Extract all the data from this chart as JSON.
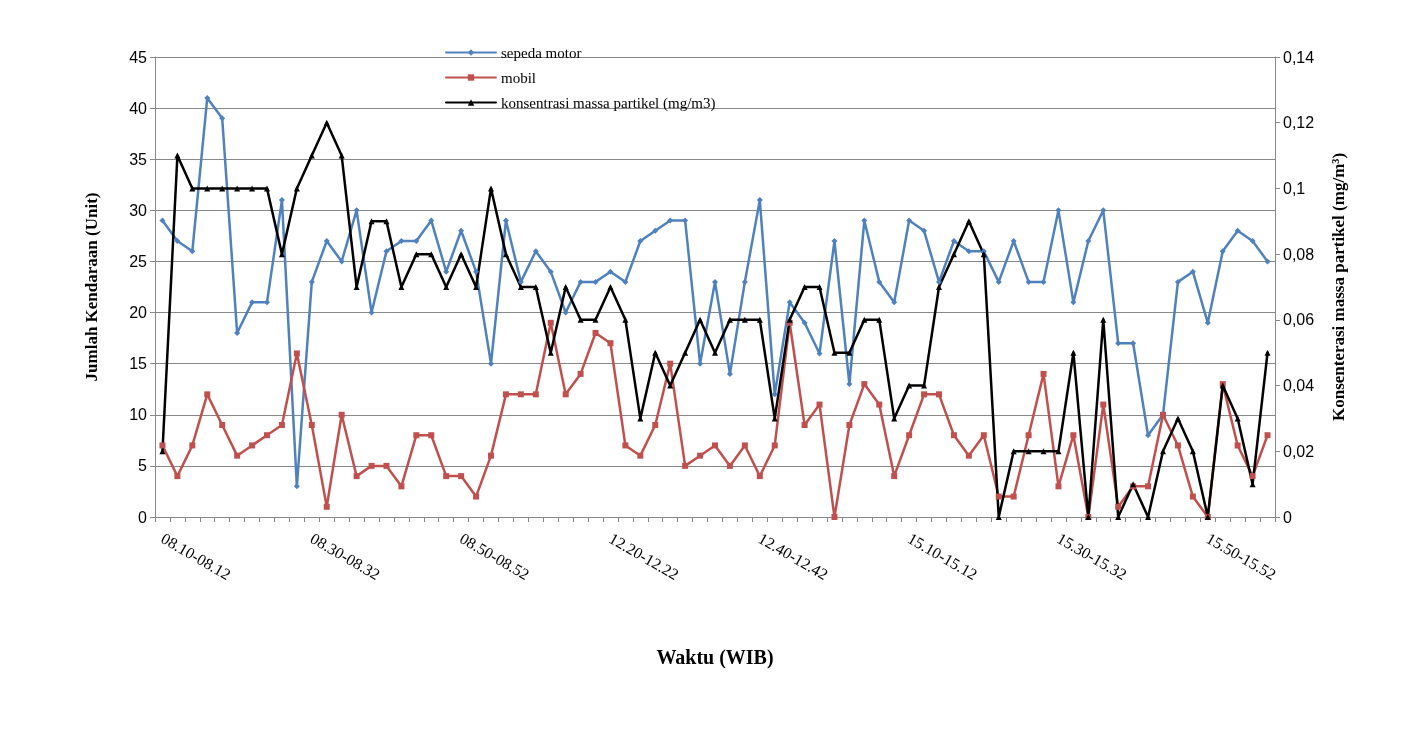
{
  "chart_data": {
    "type": "line",
    "xlabel": "Waktu (WIB)",
    "ylabel": "Jumlah Kendaraan (Unit)",
    "y2label": "Konsenterasi massa partikel (mg/m³)",
    "categories": [
      "08.10-08.12",
      null,
      null,
      null,
      null,
      null,
      null,
      null,
      null,
      null,
      "08.30-08.32",
      null,
      null,
      null,
      null,
      null,
      null,
      null,
      null,
      null,
      "08.50-08.52",
      null,
      null,
      null,
      null,
      null,
      null,
      null,
      null,
      null,
      "12.20-12.22",
      null,
      null,
      null,
      null,
      null,
      null,
      null,
      null,
      null,
      "12.40-12.42",
      null,
      null,
      null,
      null,
      null,
      null,
      null,
      null,
      null,
      "15.10-15.12",
      null,
      null,
      null,
      null,
      null,
      null,
      null,
      null,
      null,
      "15.30-15.32",
      null,
      null,
      null,
      null,
      null,
      null,
      null,
      null,
      null,
      "15.50-15.52",
      null,
      null,
      null,
      null
    ],
    "series": [
      {
        "name": "sepeda motor",
        "color": "#4f81bd",
        "marker": "diamond",
        "values": [
          29,
          27,
          26,
          41,
          39,
          18,
          21,
          21,
          31,
          3,
          23,
          27,
          25,
          30,
          20,
          26,
          27,
          27,
          29,
          24,
          28,
          24,
          15,
          29,
          23,
          26,
          24,
          20,
          23,
          23,
          24,
          23,
          27,
          28,
          29,
          29,
          15,
          23,
          14,
          23,
          31,
          12,
          21,
          19,
          16,
          27,
          13,
          29,
          23,
          21,
          29,
          28,
          23,
          27,
          26,
          26,
          23,
          27,
          23,
          23,
          30,
          21,
          27,
          30,
          17,
          17,
          8,
          10,
          23,
          24,
          19,
          26,
          28,
          27,
          25
        ]
      },
      {
        "name": "mobil",
        "color": "#c0504d",
        "marker": "square",
        "values": [
          7,
          4,
          7,
          12,
          9,
          6,
          7,
          8,
          9,
          16,
          9,
          1,
          10,
          4,
          5,
          5,
          3,
          8,
          8,
          4,
          4,
          2,
          6,
          12,
          12,
          12,
          19,
          12,
          14,
          18,
          17,
          7,
          6,
          9,
          15,
          5,
          6,
          7,
          5,
          7,
          4,
          7,
          19,
          9,
          11,
          0,
          9,
          13,
          11,
          4,
          8,
          12,
          12,
          8,
          6,
          8,
          2,
          2,
          8,
          14,
          3,
          8,
          0,
          11,
          1,
          3,
          3,
          10,
          7,
          2,
          0,
          13,
          7,
          4,
          8
        ]
      },
      {
        "name": "konsentrasi massa partikel (mg/m3)",
        "color": "#000000",
        "marker": "triangle",
        "axis": "y2",
        "values": [
          0.02,
          0.11,
          0.1,
          0.1,
          0.1,
          0.1,
          0.1,
          0.1,
          0.08,
          0.1,
          0.11,
          0.12,
          0.11,
          0.07,
          0.09,
          0.09,
          0.07,
          0.08,
          0.08,
          0.07,
          0.08,
          0.07,
          0.1,
          0.08,
          0.07,
          0.07,
          0.05,
          0.07,
          0.06,
          0.06,
          0.07,
          0.06,
          0.03,
          0.05,
          0.04,
          0.05,
          0.06,
          0.05,
          0.06,
          0.06,
          0.06,
          0.03,
          0.06,
          0.07,
          0.07,
          0.05,
          0.05,
          0.06,
          0.06,
          0.03,
          0.04,
          0.04,
          0.07,
          0.08,
          0.09,
          0.08,
          0,
          0.02,
          0.02,
          0.02,
          0.02,
          0.05,
          0,
          0.06,
          0,
          0.01,
          0,
          0.02,
          0.03,
          0.02,
          0,
          0.04,
          0.03,
          0.01,
          0.05
        ]
      }
    ],
    "ylim": [
      0,
      45
    ],
    "yticks": [
      0,
      5,
      10,
      15,
      20,
      25,
      30,
      35,
      40,
      45
    ],
    "y2lim": [
      0,
      0.14
    ],
    "y2ticks": [
      0,
      {
        "value": 0.02,
        "label": "0,02"
      },
      {
        "value": 0.04,
        "label": "0,04"
      },
      {
        "value": 0.06,
        "label": "0,06"
      },
      {
        "value": 0.08,
        "label": "0,08"
      },
      {
        "value": 0.1,
        "label": "0,1"
      },
      {
        "value": 0.12,
        "label": "0,12"
      },
      {
        "value": 0.14,
        "label": "0,14"
      }
    ],
    "grid": "y",
    "legend": "top",
    "line_style": "solid"
  }
}
